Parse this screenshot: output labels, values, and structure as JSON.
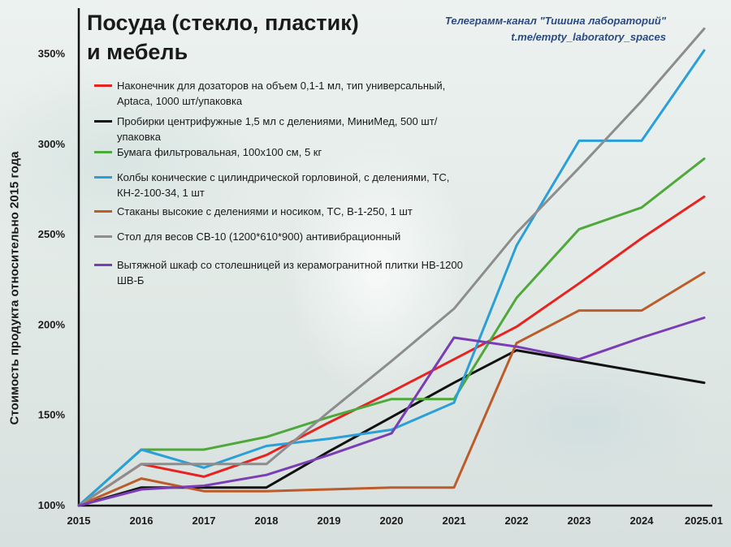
{
  "header": {
    "title_line1": "Посуда (стекло, пластик)",
    "title_line2": "и мебель",
    "credit_line1": "Телеграмм-канал \"Тишина лабораторий\"",
    "credit_line2": "t.me/empty_laboratory_spaces"
  },
  "chart_data": {
    "type": "line",
    "title": "Посуда (стекло, пластик) и мебель",
    "xlabel": "",
    "ylabel": "Стоимость продукта относительно 2015 года",
    "categories": [
      "2015",
      "2016",
      "2017",
      "2018",
      "2019",
      "2020",
      "2021",
      "2022",
      "2023",
      "2024",
      "2025.01"
    ],
    "ylim": [
      100,
      370
    ],
    "yticks": [
      100,
      150,
      200,
      250,
      300,
      350
    ],
    "ytick_labels": [
      "100%",
      "150%",
      "200%",
      "250%",
      "300%",
      "350%"
    ],
    "grid": false,
    "legend_position": "top-left",
    "series": [
      {
        "name": "Наконечник для дозаторов на объем 0,1-1 мл, тип универсальный, Aptaca, 1000 шт/упаковка",
        "color": "#e8231f",
        "values": [
          100,
          123,
          116,
          128,
          146,
          163,
          181,
          199,
          223,
          248,
          271
        ]
      },
      {
        "name": "Пробирки центрифужные 1,5 мл с делениями, МиниМед, 500 шт/упаковка",
        "color": "#111111",
        "values": [
          100,
          110,
          110,
          110,
          130,
          149,
          168,
          186,
          180,
          174,
          168
        ]
      },
      {
        "name": "Бумага фильтровальная, 100x100 см, 5 кг",
        "color": "#4ea93a",
        "values": [
          100,
          131,
          131,
          138,
          149,
          159,
          159,
          215,
          253,
          265,
          292
        ]
      },
      {
        "name": "Колбы конические с цилиндрической горловиной, с делениями, ТС, КН-2-100-34, 1 шт",
        "color": "#2a9fd8",
        "values": [
          100,
          131,
          121,
          133,
          137,
          142,
          157,
          244,
          302,
          302,
          352
        ]
      },
      {
        "name": "Стаканы высокие с делениями и носиком, ТС, В-1-250, 1 шт",
        "color": "#bd5c28",
        "values": [
          100,
          115,
          108,
          108,
          109,
          110,
          110,
          190,
          208,
          208,
          229
        ]
      },
      {
        "name": "Стол для весов СВ-10 (1200*610*900) антивибрационный",
        "color": "#8d8d8d",
        "values": [
          100,
          123,
          123,
          123,
          152,
          180,
          209,
          251,
          287,
          324,
          364
        ]
      },
      {
        "name": "Вытяжной шкаф со столешницей из керамогранитной плитки НВ-1200 ШВ-Б",
        "color": "#7b3db5",
        "values": [
          100,
          109,
          111,
          117,
          128,
          140,
          193,
          188,
          181,
          193,
          204
        ]
      }
    ]
  }
}
